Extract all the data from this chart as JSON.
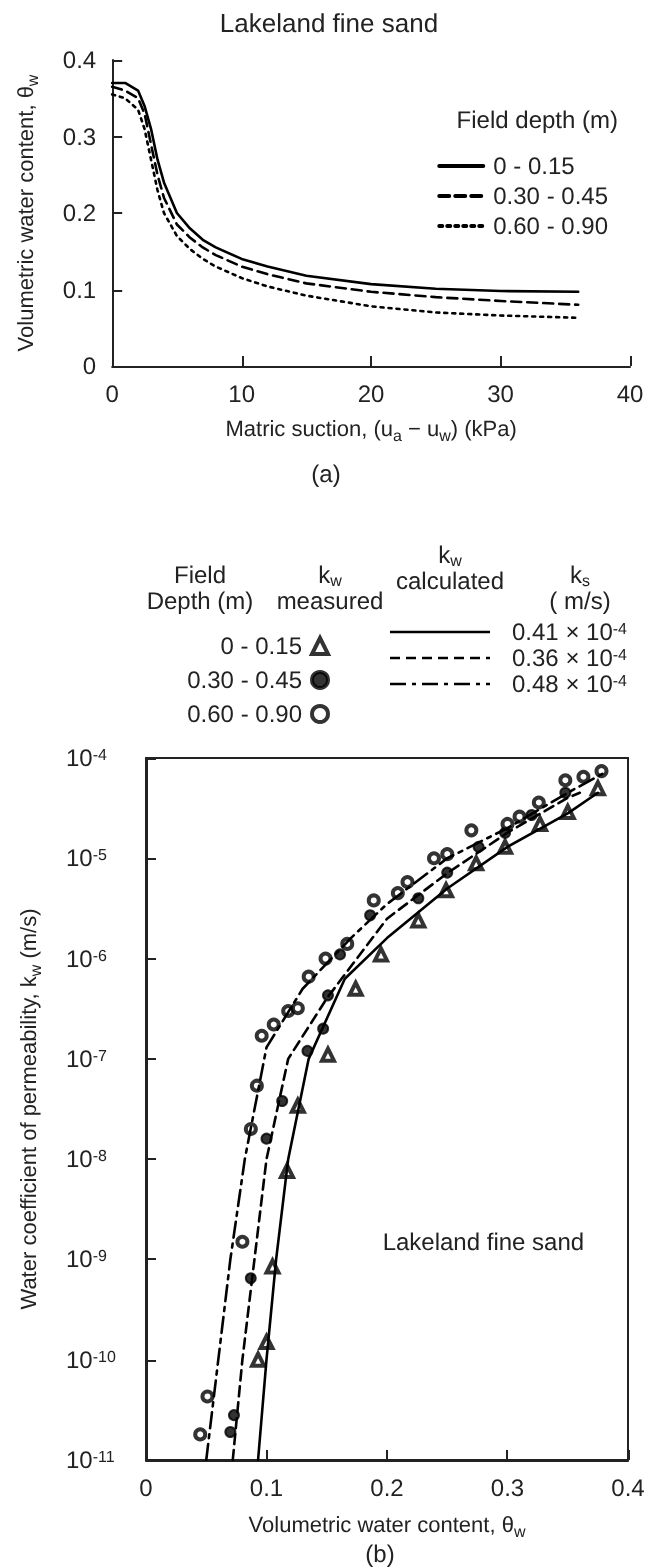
{
  "chart_data": [
    {
      "type": "line",
      "title": "Lakeland fine sand",
      "xlabel": "Matric suction, (u$_{a}$ − u$_{w}$) (kPa)",
      "ylabel": "Volumetric water content, θ$_{w}$",
      "legend_title": "Field depth (m)",
      "legend": "top right",
      "marker": "none",
      "x": [
        0,
        1,
        2,
        2.5,
        3,
        3.5,
        4,
        5,
        6,
        7,
        8,
        10,
        12,
        15,
        20,
        25,
        30,
        36
      ],
      "series": [
        {
          "name": "0 - 0.15",
          "color": "#000000",
          "line_style": "solid",
          "values": [
            0.37,
            0.37,
            0.36,
            0.34,
            0.31,
            0.27,
            0.24,
            0.2,
            0.18,
            0.165,
            0.155,
            0.14,
            0.13,
            0.118,
            0.107,
            0.101,
            0.098,
            0.097
          ]
        },
        {
          "name": "0.30 - 0.45",
          "color": "#000000",
          "line_style": "dashed",
          "values": [
            0.365,
            0.36,
            0.35,
            0.33,
            0.29,
            0.25,
            0.22,
            0.185,
            0.168,
            0.155,
            0.145,
            0.13,
            0.12,
            0.108,
            0.097,
            0.09,
            0.085,
            0.08
          ]
        },
        {
          "name": "0.60 - 0.90",
          "color": "#000000",
          "line_style": "dotted",
          "values": [
            0.355,
            0.35,
            0.335,
            0.31,
            0.27,
            0.23,
            0.2,
            0.17,
            0.153,
            0.14,
            0.13,
            0.115,
            0.104,
            0.092,
            0.078,
            0.07,
            0.066,
            0.063
          ]
        }
      ],
      "xlim": [
        0,
        40
      ],
      "xticks": [
        0,
        10,
        20,
        30,
        40
      ],
      "ylim": [
        0,
        0.4
      ],
      "yticks": [
        0,
        0.1,
        0.2,
        0.3,
        0.4
      ],
      "annotations": [
        "(a)"
      ]
    },
    {
      "type": "scatter",
      "xlabel": "Volumetric water content, θ$_{w}$",
      "ylabel": "Water coefficient of permeability, k$_{w}$ (m/s)",
      "legend_title": "Field\nDepth (m)",
      "legend": "top",
      "log": "y",
      "series": [
        {
          "name": "0 - 0.15",
          "type": "scatter",
          "marker": "triangle-open",
          "color": "#000000",
          "x": [
            0.093,
            0.1,
            0.105,
            0.117,
            0.126,
            0.151,
            0.174,
            0.195,
            0.226,
            0.249,
            0.274,
            0.298,
            0.327,
            0.35,
            0.375
          ],
          "values": [
            1e-10,
            1.5e-10,
            8.5e-10,
            7.6e-09,
            3.4e-08,
            1.1e-07,
            5e-07,
            1.1e-06,
            2.4e-06,
            4.8e-06,
            8.9e-06,
            1.3e-05,
            2.2e-05,
            2.9e-05,
            5e-05
          ]
        },
        {
          "name": "0.30 - 0.45",
          "type": "scatter",
          "marker": "circle",
          "color": "#000000",
          "x": [
            0.07,
            0.073,
            0.087,
            0.1,
            0.113,
            0.134,
            0.147,
            0.151,
            0.161,
            0.186,
            0.226,
            0.25,
            0.276,
            0.298,
            0.32,
            0.348
          ],
          "values": [
            1.9e-11,
            2.8e-11,
            6.5e-10,
            1.6e-08,
            3.8e-08,
            1.2e-07,
            2e-07,
            4.3e-07,
            1.1e-06,
            2.7e-06,
            4e-06,
            7.2e-06,
            1.3e-05,
            1.8e-05,
            2.7e-05,
            4.5e-05
          ]
        },
        {
          "name": "0.60 - 0.90",
          "type": "scatter",
          "marker": "circle-open",
          "color": "#000000",
          "x": [
            0.045,
            0.051,
            0.08,
            0.087,
            0.092,
            0.096,
            0.106,
            0.118,
            0.126,
            0.135,
            0.149,
            0.167,
            0.189,
            0.209,
            0.217,
            0.239,
            0.25,
            0.27,
            0.3,
            0.31,
            0.326,
            0.348,
            0.363,
            0.378
          ],
          "values": [
            1.8e-11,
            4.3e-11,
            1.5e-09,
            2e-08,
            5.4e-08,
            1.7e-07,
            2.2e-07,
            3e-07,
            3.2e-07,
            6.6e-07,
            1e-06,
            1.4e-06,
            3.8e-06,
            4.5e-06,
            5.8e-06,
            1e-05,
            1.1e-05,
            1.9e-05,
            2.2e-05,
            2.6e-05,
            3.6e-05,
            6e-05,
            6.5e-05,
            7.4e-05
          ]
        },
        {
          "type": "line",
          "line_style": "solid",
          "marker": "none",
          "color": "#000000",
          "x": [
            0.093,
            0.1,
            0.108,
            0.118,
            0.135,
            0.165,
            0.2,
            0.25,
            0.3,
            0.35,
            0.375
          ],
          "values": [
            1e-11,
            1e-10,
            1e-09,
            1e-08,
            1e-07,
            6.3e-07,
            1.6e-06,
            5e-06,
            1.3e-05,
            2.8e-05,
            4.5e-05
          ]
        },
        {
          "type": "line",
          "line_style": "dashed",
          "marker": "none",
          "color": "#000000",
          "x": [
            0.072,
            0.08,
            0.09,
            0.1,
            0.118,
            0.15,
            0.2,
            0.25,
            0.3,
            0.35,
            0.36
          ],
          "values": [
            1e-11,
            1e-10,
            1e-09,
            1e-08,
            1e-07,
            4e-07,
            2.5e-06,
            7.1e-06,
            1.8e-05,
            4e-05,
            4.5e-05
          ]
        },
        {
          "type": "line",
          "line_style": "dashdot",
          "marker": "none",
          "color": "#000000",
          "x": [
            0.05,
            0.06,
            0.07,
            0.082,
            0.1,
            0.13,
            0.17,
            0.2,
            0.25,
            0.3,
            0.35,
            0.38
          ],
          "values": [
            1e-11,
            1e-10,
            1e-09,
            1e-08,
            1.3e-07,
            5e-07,
            1.6e-06,
            3.5e-06,
            1e-05,
            2e-05,
            4.5e-05,
            7.1e-05
          ]
        }
      ],
      "xlim": [
        0,
        0.4
      ],
      "xticks": [
        0,
        0.1,
        0.2,
        0.3,
        0.4
      ],
      "ylim": [
        1e-11,
        0.0001
      ],
      "yticks": [
        {
          "value": 1e-11,
          "label": "10$^{-11}$"
        },
        {
          "value": 1e-10,
          "label": "10$^{-10}$"
        },
        {
          "value": 1e-09,
          "label": "10$^{-9}$"
        },
        {
          "value": 1e-08,
          "label": "10$^{-8}$"
        },
        {
          "value": 1e-07,
          "label": "10$^{-7}$"
        },
        {
          "value": 1e-06,
          "label": "10$^{-6}$"
        },
        {
          "value": 1e-05,
          "label": "10$^{-5}$"
        },
        {
          "value": 0.0001,
          "label": "10$^{-4}$"
        }
      ],
      "annotations": [
        "k$_{w}$\nmeasured",
        "k$_{w}$\ncalculated",
        "k$_{s}$\n( m/s)",
        "0.41 × 10$^{-4}$",
        "0.36 × 10$^{-4}$",
        "0.48 × 10$^{-4}$",
        "Lakeland fine sand",
        "(b)"
      ]
    }
  ]
}
